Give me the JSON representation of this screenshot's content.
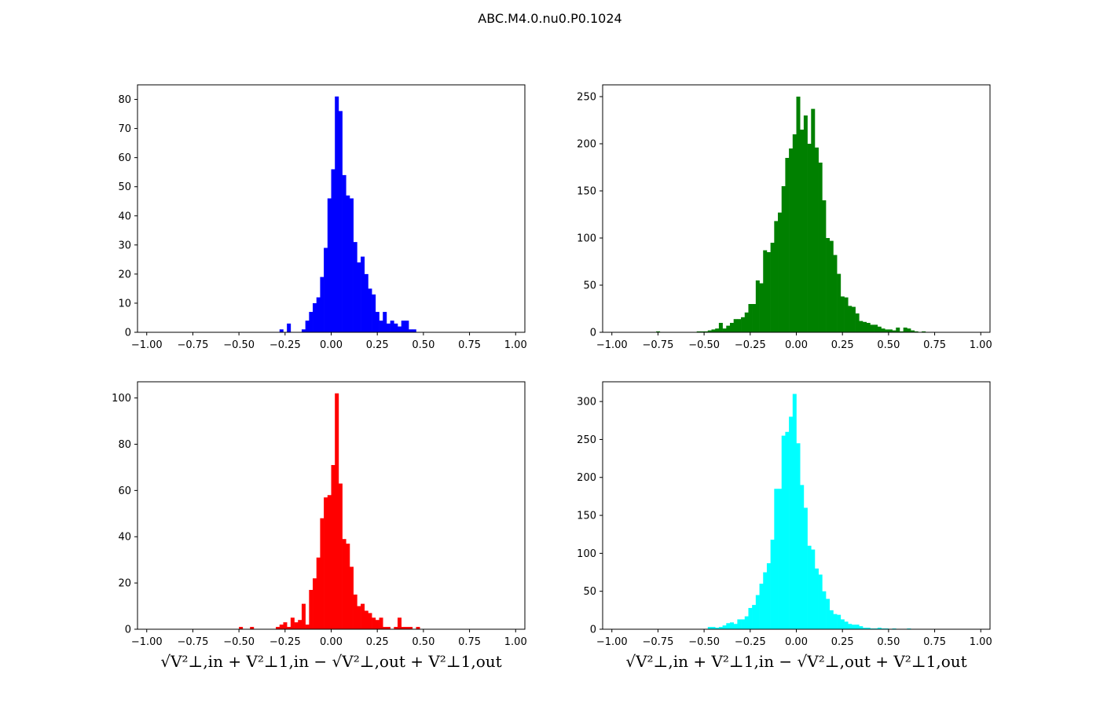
{
  "figure": {
    "title": "ABC.M4.0.nu0.P0.1024"
  },
  "chart_data": [
    {
      "type": "bar",
      "title": "",
      "color": "#0000ff",
      "xlim": [
        -1.05,
        1.05
      ],
      "ylim": [
        0,
        85
      ],
      "xticks": [
        -1.0,
        -0.75,
        -0.5,
        -0.25,
        0.0,
        0.25,
        0.5,
        0.75,
        1.0
      ],
      "xtick_labels": [
        "−1.00",
        "−0.75",
        "−0.50",
        "−0.25",
        "0.00",
        "0.25",
        "0.50",
        "0.75",
        "1.00"
      ],
      "yticks": [
        0,
        10,
        20,
        30,
        40,
        50,
        60,
        70,
        80
      ],
      "ytick_labels": [
        "0",
        "10",
        "20",
        "30",
        "40",
        "50",
        "60",
        "70",
        "80"
      ],
      "xlabel": "",
      "bin_edges_start": -1.0,
      "bin_width": 0.02,
      "values": [
        0,
        0,
        0,
        0,
        0,
        0,
        0,
        0,
        0,
        0,
        0,
        0,
        0,
        0,
        0,
        0,
        0,
        0,
        0,
        0,
        0,
        0,
        0,
        0,
        0,
        0,
        0,
        0,
        0,
        0,
        0,
        0,
        0,
        0,
        0,
        0,
        1,
        0,
        3,
        0,
        0,
        0,
        1,
        4,
        7,
        10,
        12,
        19,
        29,
        46,
        56,
        81,
        76,
        54,
        47,
        46,
        31,
        24,
        26,
        20,
        15,
        13,
        7,
        4,
        7,
        3,
        4,
        3,
        2,
        4,
        4,
        1,
        1,
        0,
        0,
        0,
        0,
        0,
        0,
        0,
        0,
        0,
        0,
        0,
        0,
        0,
        0,
        0,
        0,
        0,
        0,
        0,
        0,
        0,
        0,
        0,
        0,
        0,
        0,
        0
      ]
    },
    {
      "type": "bar",
      "title": "",
      "color": "#008000",
      "xlim": [
        -1.05,
        1.05
      ],
      "ylim": [
        0,
        262.5
      ],
      "xticks": [
        -1.0,
        -0.75,
        -0.5,
        -0.25,
        0.0,
        0.25,
        0.5,
        0.75,
        1.0
      ],
      "xtick_labels": [
        "−1.00",
        "−0.75",
        "−0.50",
        "−0.25",
        "0.00",
        "0.25",
        "0.50",
        "0.75",
        "1.00"
      ],
      "yticks": [
        0,
        50,
        100,
        150,
        200,
        250
      ],
      "ytick_labels": [
        "0",
        "50",
        "100",
        "150",
        "200",
        "250"
      ],
      "xlabel": "",
      "bin_edges_start": -1.0,
      "bin_width": 0.02,
      "values": [
        0,
        0,
        0,
        0,
        0,
        0,
        0,
        0,
        0,
        0,
        0,
        0,
        1,
        0,
        0,
        0,
        0,
        0,
        0,
        0,
        0,
        0,
        0,
        1,
        1,
        1,
        2,
        3,
        4,
        10,
        4,
        7,
        10,
        14,
        14,
        16,
        21,
        30,
        30,
        55,
        52,
        87,
        85,
        95,
        118,
        127,
        155,
        185,
        195,
        210,
        250,
        215,
        230,
        200,
        237,
        196,
        180,
        140,
        100,
        97,
        82,
        62,
        38,
        37,
        28,
        27,
        20,
        12,
        11,
        10,
        8,
        8,
        6,
        4,
        3,
        3,
        2,
        5,
        1,
        5,
        4,
        2,
        1,
        0,
        1,
        0,
        0,
        0,
        0,
        0,
        0,
        0,
        0,
        0,
        0,
        0,
        0,
        0,
        0,
        0
      ]
    },
    {
      "type": "bar",
      "title": "",
      "color": "#ff0000",
      "xlim": [
        -1.05,
        1.05
      ],
      "ylim": [
        0,
        107
      ],
      "xticks": [
        -1.0,
        -0.75,
        -0.5,
        -0.25,
        0.0,
        0.25,
        0.5,
        0.75,
        1.0
      ],
      "xtick_labels": [
        "−1.00",
        "−0.75",
        "−0.50",
        "−0.25",
        "0.00",
        "0.25",
        "0.50",
        "0.75",
        "1.00"
      ],
      "yticks": [
        0,
        20,
        40,
        60,
        80,
        100
      ],
      "ytick_labels": [
        "0",
        "20",
        "40",
        "60",
        "80",
        "100"
      ],
      "xlabel": "√V²⊥,in + V²⊥1,in − √V²⊥,out + V²⊥1,out",
      "bin_edges_start": -1.0,
      "bin_width": 0.02,
      "values": [
        0,
        0,
        0,
        0,
        0,
        0,
        0,
        0,
        0,
        0,
        0,
        0,
        0,
        0,
        0,
        0,
        0,
        0,
        0,
        0,
        0,
        0,
        0,
        0,
        0,
        1,
        0,
        0,
        1,
        0,
        0,
        0,
        0,
        0,
        0,
        1,
        2,
        3,
        1,
        5,
        3,
        4,
        11,
        2,
        17,
        22,
        31,
        48,
        57,
        58,
        71,
        102,
        63,
        39,
        37,
        27,
        15,
        10,
        11,
        8,
        7,
        5,
        4,
        5,
        1,
        1,
        0,
        1,
        5,
        1,
        1,
        1,
        0,
        1,
        0,
        0,
        0,
        0,
        0,
        0,
        0,
        0,
        0,
        0,
        0,
        0,
        0,
        0,
        0,
        0,
        0,
        0,
        0,
        0,
        0,
        0,
        0,
        0,
        0,
        0
      ]
    },
    {
      "type": "bar",
      "title": "",
      "color": "#00ffff",
      "xlim": [
        -1.05,
        1.05
      ],
      "ylim": [
        0,
        326
      ],
      "xticks": [
        -1.0,
        -0.75,
        -0.5,
        -0.25,
        0.0,
        0.25,
        0.5,
        0.75,
        1.0
      ],
      "xtick_labels": [
        "−1.00",
        "−0.75",
        "−0.50",
        "−0.25",
        "0.00",
        "0.25",
        "0.50",
        "0.75",
        "1.00"
      ],
      "yticks": [
        0,
        50,
        100,
        150,
        200,
        250,
        300
      ],
      "ytick_labels": [
        "0",
        "50",
        "100",
        "150",
        "200",
        "250",
        "300"
      ],
      "xlabel": "√V²⊥,in + V²⊥1,in − √V²⊥,out + V²⊥1,out",
      "bin_edges_start": -1.0,
      "bin_width": 0.02,
      "values": [
        0,
        0,
        0,
        0,
        0,
        0,
        0,
        0,
        0,
        0,
        0,
        0,
        0,
        0,
        0,
        0,
        0,
        0,
        0,
        0,
        0,
        0,
        0,
        0,
        0,
        0,
        3,
        3,
        2,
        3,
        5,
        8,
        9,
        7,
        13,
        13,
        17,
        28,
        32,
        45,
        60,
        75,
        87,
        118,
        185,
        185,
        255,
        260,
        280,
        310,
        245,
        190,
        160,
        110,
        105,
        80,
        72,
        50,
        40,
        25,
        20,
        19,
        13,
        10,
        7,
        6,
        6,
        4,
        2,
        2,
        1,
        1,
        2,
        1,
        1,
        0,
        1,
        0,
        0,
        0,
        1,
        0,
        0,
        0,
        0,
        0,
        0,
        0,
        0,
        0,
        0,
        0,
        0,
        0,
        0,
        0,
        0,
        0,
        0,
        0
      ]
    }
  ]
}
